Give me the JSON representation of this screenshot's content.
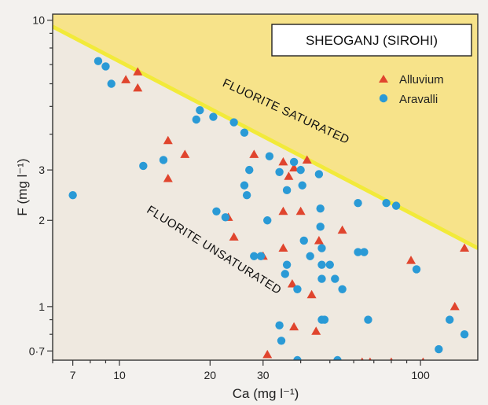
{
  "chart_data": {
    "type": "scatter",
    "title": "SHEOGANJ (SIROHI)",
    "xlabel": "Ca (mg l⁻¹)",
    "ylabel": "F (mg l⁻¹)",
    "xscale": "log",
    "yscale": "log",
    "xlim": [
      6,
      155
    ],
    "ylim": [
      0.65,
      10.5
    ],
    "xticks": [
      7,
      10,
      20,
      30,
      100
    ],
    "xtick_labels": [
      "7",
      "10",
      "20",
      "30",
      "100"
    ],
    "yticks": [
      0.7,
      1,
      2,
      3,
      10
    ],
    "ytick_labels": [
      "0·7",
      "1",
      "2",
      "3",
      "10"
    ],
    "grid": false,
    "legend_position": "top-right",
    "saturation_line": [
      [
        6,
        9.5
      ],
      [
        155,
        1.6
      ]
    ],
    "regions": {
      "saturated_label": "FLUORITE SATURATED",
      "unsaturated_label": "FLUORITE UNSATURATED",
      "saturated_color": "#f7e38a",
      "unsaturated_color": "#efe9e0",
      "line_color": "#f2ea3a"
    },
    "series": [
      {
        "name": "Alluvium",
        "marker": "triangle",
        "color": "#e0452e",
        "points": [
          [
            10.5,
            6.2
          ],
          [
            11.5,
            6.6
          ],
          [
            11.5,
            5.8
          ],
          [
            14.5,
            3.8
          ],
          [
            16.5,
            3.4
          ],
          [
            14.5,
            2.8
          ],
          [
            23,
            2.05
          ],
          [
            24,
            1.75
          ],
          [
            28,
            3.4
          ],
          [
            30,
            1.5
          ],
          [
            31,
            0.68
          ],
          [
            35,
            3.2
          ],
          [
            35,
            2.15
          ],
          [
            35,
            1.6
          ],
          [
            36.5,
            2.85
          ],
          [
            37.5,
            1.2
          ],
          [
            38,
            0.85
          ],
          [
            38,
            3.05
          ],
          [
            40,
            2.15
          ],
          [
            42,
            3.25
          ],
          [
            43.5,
            1.1
          ],
          [
            45,
            0.82
          ],
          [
            46,
            1.7
          ],
          [
            55,
            1.85
          ],
          [
            64,
            0.64
          ],
          [
            68,
            0.64
          ],
          [
            80,
            0.64
          ],
          [
            93,
            1.45
          ],
          [
            102,
            0.64
          ],
          [
            130,
            1.0
          ],
          [
            140,
            1.6
          ]
        ]
      },
      {
        "name": "Aravalli",
        "marker": "circle",
        "color": "#2a9ad6",
        "points": [
          [
            7,
            2.45
          ],
          [
            8.5,
            7.2
          ],
          [
            9,
            6.9
          ],
          [
            9.4,
            6.0
          ],
          [
            12,
            3.1
          ],
          [
            14,
            3.25
          ],
          [
            18,
            4.5
          ],
          [
            18.5,
            4.85
          ],
          [
            20.5,
            4.6
          ],
          [
            21,
            2.15
          ],
          [
            22.5,
            2.05
          ],
          [
            24,
            4.4
          ],
          [
            26,
            4.05
          ],
          [
            26,
            2.65
          ],
          [
            26.5,
            2.45
          ],
          [
            27,
            3.0
          ],
          [
            28,
            1.5
          ],
          [
            29.5,
            1.5
          ],
          [
            31,
            2.0
          ],
          [
            31.5,
            3.35
          ],
          [
            34,
            2.95
          ],
          [
            34,
            0.86
          ],
          [
            34.5,
            0.76
          ],
          [
            35.5,
            1.3
          ],
          [
            36,
            1.4
          ],
          [
            36,
            2.55
          ],
          [
            38,
            3.2
          ],
          [
            39,
            1.15
          ],
          [
            39,
            0.65
          ],
          [
            40,
            3.0
          ],
          [
            40.5,
            2.65
          ],
          [
            41,
            1.7
          ],
          [
            43,
            1.5
          ],
          [
            46,
            2.9
          ],
          [
            46.5,
            2.2
          ],
          [
            46.5,
            1.9
          ],
          [
            47,
            1.6
          ],
          [
            47,
            1.4
          ],
          [
            47,
            1.25
          ],
          [
            47,
            0.9
          ],
          [
            48,
            0.9
          ],
          [
            50,
            1.4
          ],
          [
            52,
            1.25
          ],
          [
            53,
            0.65
          ],
          [
            55,
            1.15
          ],
          [
            62,
            2.3
          ],
          [
            62,
            1.55
          ],
          [
            65,
            1.55
          ],
          [
            67,
            0.9
          ],
          [
            77,
            2.3
          ],
          [
            83,
            2.25
          ],
          [
            97,
            1.35
          ],
          [
            115,
            0.71
          ],
          [
            125,
            0.9
          ],
          [
            140,
            0.8
          ]
        ]
      }
    ]
  }
}
